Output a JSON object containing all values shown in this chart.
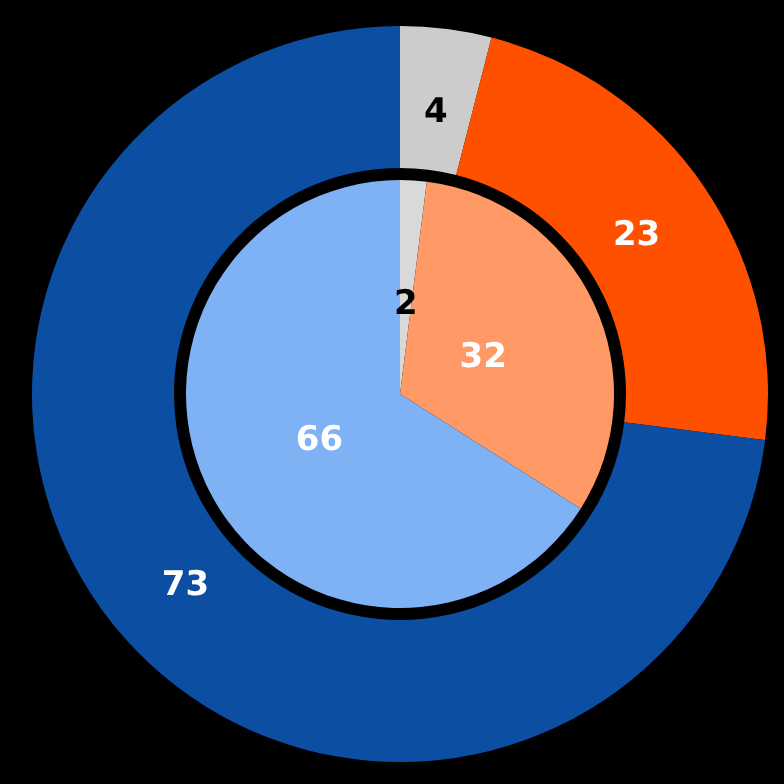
{
  "chart_data": [
    {
      "type": "donut",
      "categories": [
        null,
        null,
        null
      ],
      "values": [
        4,
        23,
        73
      ],
      "colors": [
        "#cccccc",
        "#ff5000",
        "#0b4ea2"
      ],
      "data_labels": true
    },
    {
      "type": "pie",
      "categories": [
        null,
        null,
        null
      ],
      "values": [
        2,
        32,
        66
      ],
      "colors": [
        "#d9d9d9",
        "#ff9966",
        "#7fb2f5"
      ],
      "data_labels": true
    }
  ]
}
